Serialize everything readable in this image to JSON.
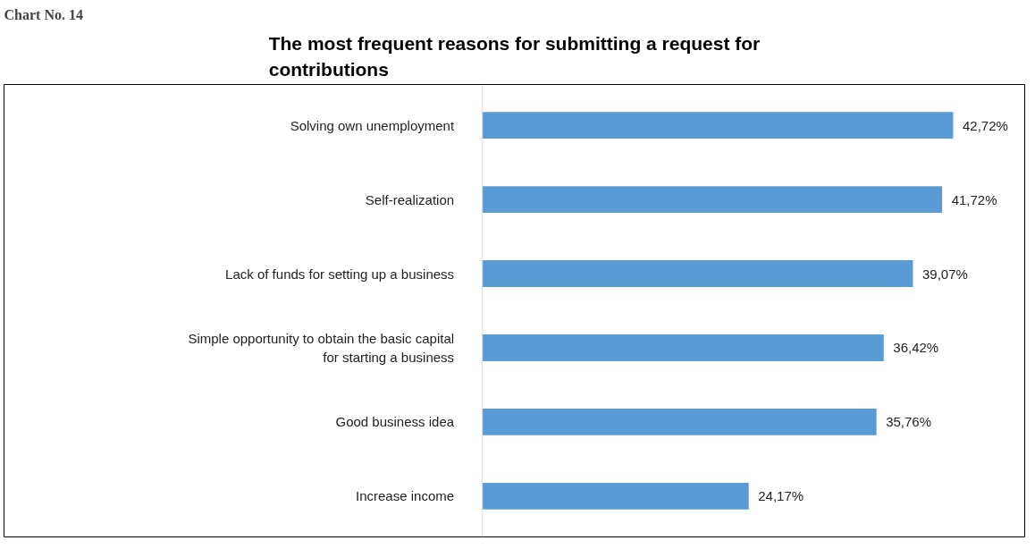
{
  "chart_data": {
    "type": "bar",
    "orientation": "horizontal",
    "title": "The most frequent reasons for submitting a request for contributions",
    "annotations": [
      "Chart No. 14"
    ],
    "categories": [
      "Solving own unemployment",
      "Self-realization",
      "Lack of funds for setting up a business",
      "Simple opportunity to obtain the basic capital for starting a business",
      "Good business idea",
      "Increase income"
    ],
    "values": [
      42.72,
      41.72,
      39.07,
      36.42,
      35.76,
      24.17
    ],
    "value_labels": [
      "42,72%",
      "41,72%",
      "39,07%",
      "36,42%",
      "35,76%",
      "24,17%"
    ],
    "color": "#5b9bd5"
  }
}
